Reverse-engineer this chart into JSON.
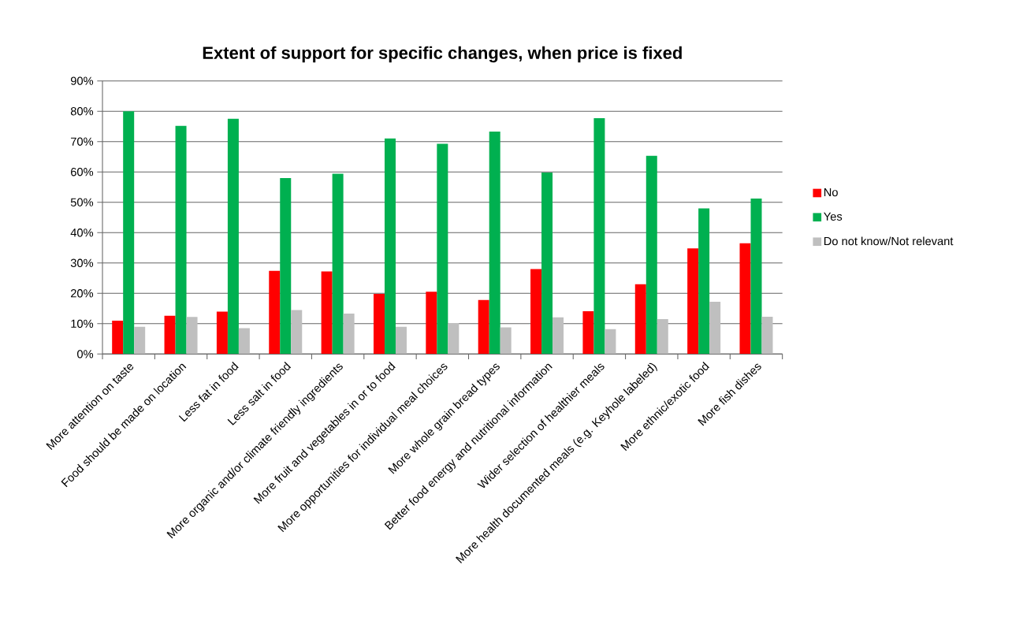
{
  "chart_data": {
    "type": "bar",
    "title": "Extent of support for specific changes, when price is fixed",
    "categories": [
      "More attention on taste",
      "Food should be made on location",
      "Less fat in food",
      "Less salt in food",
      "More organic and/or climate friendly ingredients",
      "More fruit and vegetables in or to food",
      "More opportunities for individual meal choices",
      "More whole grain bread types",
      "Better food energy and nutritional information",
      "Wider selection of healthier meals",
      "More health documented meals (e.g. Keyhole labeled)",
      "More ethnic/exotic food",
      "More fish dishes"
    ],
    "series": [
      {
        "name": "No",
        "color": "#ff0000",
        "values": [
          11,
          12.6,
          14,
          27.4,
          27.2,
          19.8,
          20.5,
          17.8,
          28,
          14.1,
          23,
          34.8,
          36.5
        ]
      },
      {
        "name": "Yes",
        "color": "#00b050",
        "values": [
          80,
          75.2,
          77.5,
          58,
          59.4,
          71,
          69.3,
          73.3,
          59.8,
          77.7,
          65.3,
          48,
          51.2
        ]
      },
      {
        "name": "Do not know/Not relevant",
        "color": "#bfbfbf",
        "values": [
          9,
          12.2,
          8.5,
          14.5,
          13.3,
          9,
          10.2,
          8.8,
          12.1,
          8.2,
          11.5,
          17.2,
          12.3
        ]
      }
    ],
    "ylim": [
      0,
      90
    ],
    "yticks": [
      {
        "value": 0,
        "label": "0%"
      },
      {
        "value": 10,
        "label": "10%"
      },
      {
        "value": 20,
        "label": "20%"
      },
      {
        "value": 30,
        "label": "30%"
      },
      {
        "value": 40,
        "label": "40%"
      },
      {
        "value": 50,
        "label": "50%"
      },
      {
        "value": 60,
        "label": "60%"
      },
      {
        "value": 70,
        "label": "70%"
      },
      {
        "value": 80,
        "label": "80%"
      },
      {
        "value": 90,
        "label": "90%"
      }
    ],
    "grid": "y",
    "legend": "right"
  }
}
